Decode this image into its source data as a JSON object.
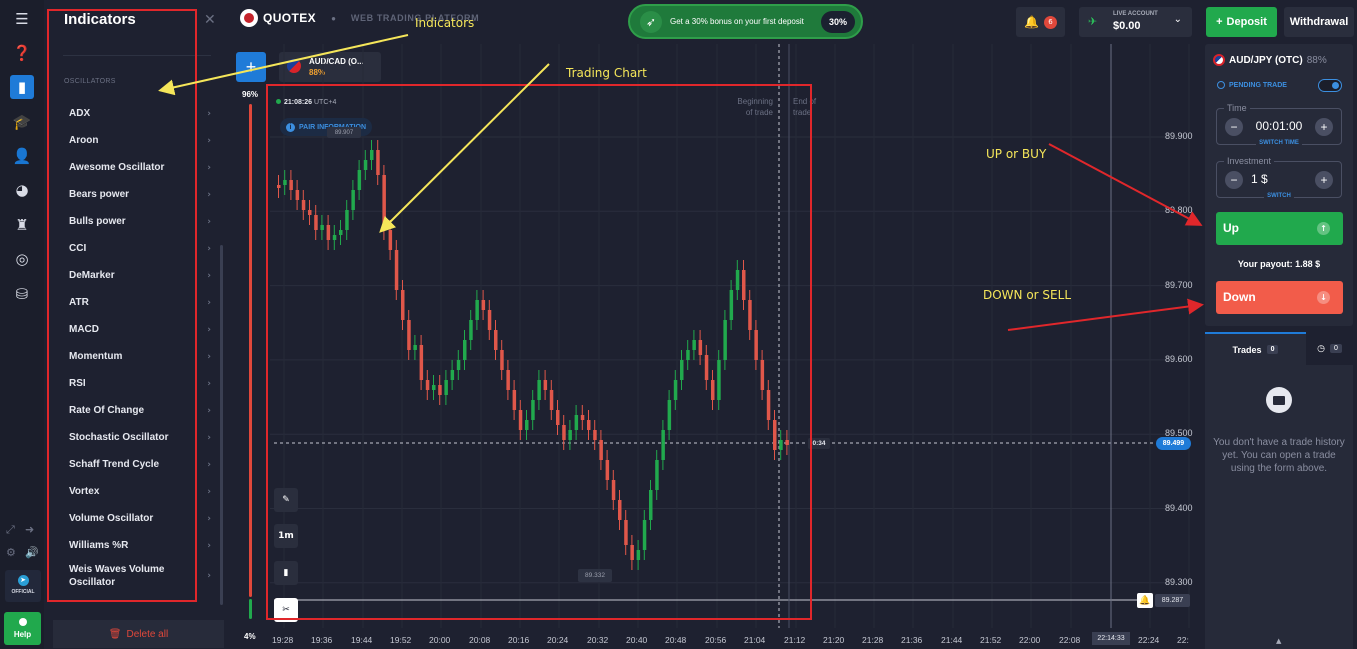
{
  "indicators_panel": {
    "title": "Indicators",
    "section": "OSCILLATORS",
    "items": [
      {
        "label": "ADX"
      },
      {
        "label": "Aroon"
      },
      {
        "label": "Awesome Oscillator"
      },
      {
        "label": "Bears power"
      },
      {
        "label": "Bulls power"
      },
      {
        "label": "CCI"
      },
      {
        "label": "DeMarker"
      },
      {
        "label": "ATR"
      },
      {
        "label": "MACD"
      },
      {
        "label": "Momentum"
      },
      {
        "label": "RSI"
      },
      {
        "label": "Rate Of Change"
      },
      {
        "label": "Stochastic Oscillator"
      },
      {
        "label": "Schaff Trend Cycle"
      },
      {
        "label": "Vortex"
      },
      {
        "label": "Volume Oscillator"
      },
      {
        "label": "Williams %R"
      },
      {
        "label": "Weis Waves Volume Oscillator"
      }
    ],
    "delete_all": "Delete all"
  },
  "sidebar": {
    "icons": [
      "menu-icon",
      "help-icon",
      "chart-icon",
      "education-icon",
      "profile-icon",
      "market-icon",
      "tournaments-icon",
      "signals-icon",
      "analytics-icon"
    ],
    "official_label": "OFFICIAL",
    "help_label": "Help"
  },
  "header": {
    "brand": "QUOTEX",
    "subtitle": "WEB TRADING PLATFORM",
    "promo_text": "Get a 30% bonus on your first deposit",
    "promo_badge": "30%",
    "notifications_count": "6",
    "account_label": "LIVE ACCOUNT",
    "balance": "$0.00",
    "deposit_label": "Deposit",
    "withdrawal_label": "Withdrawal"
  },
  "chart": {
    "asset_tab_name": "AUD/CAD (O...",
    "asset_tab_payout": "88%",
    "sentiment_up": "96%",
    "sentiment_down": "4%",
    "clock": "21:08:26",
    "timezone": "UTC+4",
    "pair_info": "PAIR INFORMATION",
    "timeframe": "1m",
    "current_price": "89.499",
    "countdown": "0:34",
    "alarm_price": "89.287",
    "crosshair_time": "22:14:33",
    "low_label": "89.332",
    "high_label": "89.907",
    "beginning_label": "Beginning of trade",
    "end_label": "End of trade",
    "y_ticks": [
      "89.900",
      "89.800",
      "89.700",
      "89.600",
      "89.500",
      "89.400",
      "89.300"
    ],
    "x_ticks": [
      "19:28",
      "19:36",
      "19:44",
      "19:52",
      "20:00",
      "20:08",
      "20:16",
      "20:24",
      "20:32",
      "20:40",
      "20:48",
      "20:56",
      "21:04",
      "21:12",
      "21:20",
      "21:28",
      "21:36",
      "21:44",
      "21:52",
      "22:00",
      "22:08",
      "22:24",
      "22:"
    ]
  },
  "trade_panel": {
    "asset": "AUD/JPY (OTC)",
    "payout_pct": "88%",
    "pending": "PENDING TRADE",
    "time_label": "Time",
    "time_value": "00:01:00",
    "switch_time": "SWITCH TIME",
    "investment_label": "Investment",
    "investment_value": "1 $",
    "switch": "SWITCH",
    "up_label": "Up",
    "down_label": "Down",
    "payout_text": "Your payout: 1.88 $"
  },
  "trades": {
    "tab_label": "Trades",
    "tab_count": "0",
    "pending_count": "0",
    "empty_text": "You don't have a trade history yet. You can open a trade using the form above."
  },
  "annotations": {
    "indicators": "Indicators",
    "trading_chart": "Trading Chart",
    "up_or_buy": "UP or BUY",
    "down_or_sell": "DOWN or SELL"
  },
  "colors": {
    "up": "#21a94d",
    "down": "#f25c4a",
    "accent": "#1f7bd8",
    "annotation_box": "#e0272b",
    "annotation_text": "#f5e65a"
  }
}
